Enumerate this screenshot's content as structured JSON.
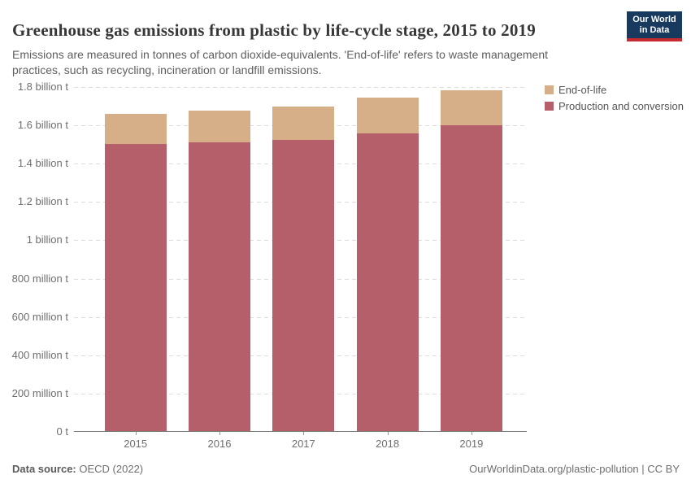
{
  "logo": {
    "line1": "Our World",
    "line2": "in Data"
  },
  "chart_data": {
    "type": "bar",
    "stacked": true,
    "title": "Greenhouse gas emissions from plastic by life-cycle stage, 2015 to 2019",
    "subtitle_lines": [
      "Emissions are measured in tonnes of carbon dioxide-equivalents. 'End-of-life' refers to waste management",
      "practices, such as recycling, incineration or landfill emissions."
    ],
    "categories": [
      "2015",
      "2016",
      "2017",
      "2018",
      "2019"
    ],
    "series": [
      {
        "name": "End-of-life",
        "color": "#d6ae88",
        "values": [
          0.155,
          0.165,
          0.175,
          0.185,
          0.185
        ]
      },
      {
        "name": "Production and conversion",
        "color": "#b45f6a",
        "values": [
          1.505,
          1.51,
          1.525,
          1.56,
          1.6
        ]
      }
    ],
    "totals_billion_tonnes": [
      1.66,
      1.675,
      1.7,
      1.745,
      1.785
    ],
    "unit_note": "values in billion tonnes of CO2-equivalents",
    "ylim": [
      0,
      1.8
    ],
    "yticks": [
      {
        "value": 0,
        "label": "0 t"
      },
      {
        "value": 0.2,
        "label": "200 million t"
      },
      {
        "value": 0.4,
        "label": "400 million t"
      },
      {
        "value": 0.6,
        "label": "600 million t"
      },
      {
        "value": 0.8,
        "label": "800 million t"
      },
      {
        "value": 1,
        "label": "1 billion t"
      },
      {
        "value": 1.2,
        "label": "1.2 billion t"
      },
      {
        "value": 1.4,
        "label": "1.4 billion t"
      },
      {
        "value": 1.6,
        "label": "1.6 billion t"
      },
      {
        "value": 1.8,
        "label": "1.8 billion t"
      }
    ],
    "grid": "horizontal-dashed",
    "legend_position": "top-right"
  },
  "footer": {
    "source_label": "Data source:",
    "source_value": "OECD (2022)",
    "credit": "OurWorldinData.org/plastic-pollution | CC BY"
  }
}
